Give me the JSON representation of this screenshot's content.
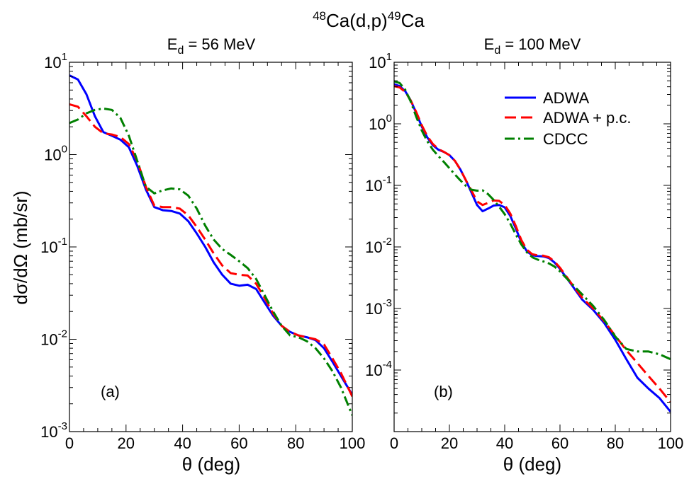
{
  "figure": {
    "title_parts": [
      {
        "text": "48",
        "sup": true
      },
      {
        "text": "Ca(d,p)",
        "sup": false
      },
      {
        "text": "49",
        "sup": true
      },
      {
        "text": "Ca",
        "sup": false
      }
    ]
  },
  "colors": {
    "ADWA": "#0000ff",
    "ADWA + p.c.": "#ff0000",
    "CDCC": "#008000"
  },
  "legend": {
    "placement": "top-right of panel (b)",
    "entries": [
      {
        "label": "ADWA",
        "style": "solid"
      },
      {
        "label": "ADWA + p.c.",
        "style": "dashed"
      },
      {
        "label": "CDCC",
        "style": "dash-dot"
      }
    ]
  },
  "chart_data": [
    {
      "type": "line",
      "panel_label": "(a)",
      "subtitle": {
        "main": "E",
        "sub": "d",
        "rest": " = 56 MeV"
      },
      "xlabel": "θ (deg)",
      "ylabel": "dσ/dΩ (mb/sr)",
      "xlim": [
        0,
        100
      ],
      "ylim": [
        0.001,
        10
      ],
      "yscale": "log",
      "xticks": [
        0,
        20,
        40,
        60,
        80,
        100
      ],
      "yticks": [
        {
          "base": "10",
          "exp": "-3"
        },
        {
          "base": "10",
          "exp": "-2"
        },
        {
          "base": "10",
          "exp": "-1"
        },
        {
          "base": "10",
          "exp": "0"
        },
        {
          "base": "10",
          "exp": "1"
        }
      ],
      "grid": false,
      "series": [
        {
          "name": "ADWA",
          "style": "solid",
          "x": [
            0,
            3,
            6,
            9,
            12,
            15,
            18,
            21,
            24,
            27,
            30,
            33,
            36,
            39,
            42,
            45,
            48,
            51,
            54,
            57,
            60,
            63,
            66,
            69,
            72,
            75,
            78,
            81,
            84,
            87,
            90,
            93,
            96,
            100
          ],
          "y": [
            7.2,
            6.5,
            4.5,
            2.6,
            1.75,
            1.6,
            1.45,
            1.2,
            0.75,
            0.42,
            0.27,
            0.25,
            0.245,
            0.23,
            0.19,
            0.14,
            0.1,
            0.068,
            0.05,
            0.04,
            0.038,
            0.039,
            0.035,
            0.025,
            0.018,
            0.014,
            0.012,
            0.011,
            0.0105,
            0.0098,
            0.008,
            0.0057,
            0.004,
            0.0025
          ]
        },
        {
          "name": "ADWA + p.c.",
          "style": "dashed",
          "x": [
            0,
            3,
            6,
            9,
            12,
            15,
            18,
            21,
            24,
            27,
            30,
            33,
            36,
            39,
            42,
            45,
            48,
            51,
            54,
            57,
            60,
            63,
            66,
            69,
            72,
            75,
            78,
            81,
            84,
            87,
            90,
            93,
            96,
            100
          ],
          "y": [
            3.5,
            3.3,
            2.6,
            2.0,
            1.7,
            1.65,
            1.55,
            1.3,
            0.85,
            0.45,
            0.28,
            0.27,
            0.27,
            0.26,
            0.22,
            0.165,
            0.12,
            0.085,
            0.063,
            0.052,
            0.05,
            0.049,
            0.04,
            0.028,
            0.019,
            0.014,
            0.012,
            0.011,
            0.0105,
            0.01,
            0.0088,
            0.0062,
            0.0043,
            0.0024
          ]
        },
        {
          "name": "CDCC",
          "style": "dash-dot",
          "x": [
            0,
            3,
            6,
            9,
            12,
            15,
            18,
            21,
            24,
            27,
            30,
            33,
            36,
            39,
            42,
            45,
            48,
            51,
            54,
            57,
            60,
            63,
            66,
            69,
            72,
            75,
            78,
            81,
            84,
            87,
            90,
            93,
            96,
            100
          ],
          "y": [
            2.2,
            2.4,
            2.8,
            3.05,
            3.15,
            3.05,
            2.5,
            1.6,
            0.85,
            0.45,
            0.38,
            0.41,
            0.43,
            0.42,
            0.36,
            0.26,
            0.17,
            0.12,
            0.095,
            0.082,
            0.07,
            0.059,
            0.045,
            0.03,
            0.02,
            0.014,
            0.011,
            0.0105,
            0.0095,
            0.008,
            0.0062,
            0.0045,
            0.003,
            0.0015
          ]
        }
      ]
    },
    {
      "type": "line",
      "panel_label": "(b)",
      "subtitle": {
        "main": "E",
        "sub": "d",
        "rest": " = 100 MeV"
      },
      "xlabel": "θ (deg)",
      "ylabel": "",
      "xlim": [
        0,
        100
      ],
      "ylim": [
        1e-05,
        10
      ],
      "yscale": "log",
      "xticks": [
        0,
        20,
        40,
        60,
        80,
        100
      ],
      "yticks": [
        {
          "base": "10",
          "exp": "-4"
        },
        {
          "base": "10",
          "exp": "-3"
        },
        {
          "base": "10",
          "exp": "-2"
        },
        {
          "base": "10",
          "exp": "-1"
        },
        {
          "base": "10",
          "exp": "0"
        },
        {
          "base": "10",
          "exp": "1"
        }
      ],
      "grid": false,
      "series": [
        {
          "name": "ADWA",
          "style": "solid",
          "x": [
            0,
            2,
            4,
            6,
            8,
            10,
            12,
            14,
            16,
            18,
            20,
            22,
            24,
            26,
            28,
            30,
            32,
            34,
            36,
            38,
            40,
            42,
            44,
            46,
            48,
            50,
            52,
            54,
            56,
            58,
            60,
            64,
            68,
            72,
            76,
            80,
            84,
            88,
            92,
            96,
            100
          ],
          "y": [
            4.4,
            4.1,
            3.4,
            2.4,
            1.5,
            0.9,
            0.6,
            0.45,
            0.38,
            0.35,
            0.31,
            0.25,
            0.18,
            0.12,
            0.076,
            0.048,
            0.038,
            0.042,
            0.047,
            0.048,
            0.044,
            0.032,
            0.02,
            0.012,
            0.0085,
            0.0073,
            0.0071,
            0.007,
            0.0066,
            0.0056,
            0.0044,
            0.0025,
            0.0014,
            0.00095,
            0.00058,
            0.00031,
            0.00015,
            7.5e-05,
            5e-05,
            3.5e-05,
            2.1e-05
          ]
        },
        {
          "name": "ADWA + p.c.",
          "style": "dashed",
          "x": [
            0,
            2,
            4,
            6,
            8,
            10,
            12,
            14,
            16,
            18,
            20,
            22,
            24,
            26,
            28,
            30,
            32,
            34,
            36,
            38,
            40,
            42,
            44,
            46,
            48,
            50,
            52,
            54,
            56,
            58,
            60,
            64,
            68,
            72,
            76,
            80,
            84,
            88,
            92,
            96,
            100
          ],
          "y": [
            4.1,
            3.9,
            3.3,
            2.4,
            1.55,
            0.95,
            0.63,
            0.47,
            0.39,
            0.35,
            0.31,
            0.25,
            0.18,
            0.12,
            0.082,
            0.055,
            0.048,
            0.052,
            0.057,
            0.056,
            0.048,
            0.035,
            0.022,
            0.013,
            0.009,
            0.0076,
            0.0073,
            0.0072,
            0.0068,
            0.0058,
            0.0046,
            0.0026,
            0.0015,
            0.001,
            0.00062,
            0.00036,
            0.00021,
            0.00013,
            8e-05,
            5e-05,
            3e-05
          ]
        },
        {
          "name": "CDCC",
          "style": "dash-dot",
          "x": [
            0,
            2,
            4,
            6,
            8,
            10,
            12,
            14,
            16,
            18,
            20,
            22,
            24,
            26,
            28,
            30,
            32,
            34,
            36,
            38,
            40,
            42,
            44,
            46,
            48,
            50,
            52,
            54,
            56,
            58,
            60,
            64,
            68,
            72,
            76,
            80,
            84,
            88,
            92,
            96,
            100
          ],
          "y": [
            4.9,
            4.6,
            3.6,
            2.3,
            1.3,
            0.78,
            0.52,
            0.38,
            0.3,
            0.24,
            0.19,
            0.15,
            0.12,
            0.098,
            0.085,
            0.082,
            0.083,
            0.072,
            0.058,
            0.045,
            0.034,
            0.024,
            0.016,
            0.011,
            0.0082,
            0.0068,
            0.0062,
            0.0058,
            0.0054,
            0.0048,
            0.004,
            0.0026,
            0.0017,
            0.0011,
            0.00065,
            0.00035,
            0.00022,
            0.0002,
            0.0002,
            0.00018,
            0.00015
          ]
        }
      ]
    }
  ]
}
